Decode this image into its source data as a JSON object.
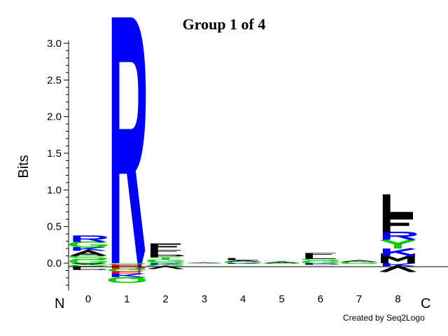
{
  "chart_data": {
    "type": "sequence-logo",
    "title": "Group 1 of 4",
    "ylabel": "Bits",
    "ylim": [
      -0.32,
      3.05
    ],
    "yticks": [
      "3.0",
      "2.5",
      "2.0",
      "1.5",
      "1.0",
      "0.5",
      "0.0"
    ],
    "ytick_values": [
      3.0,
      2.5,
      2.0,
      1.5,
      1.0,
      0.5,
      0.0
    ],
    "xticks": [
      "0",
      "1",
      "2",
      "3",
      "4",
      "5",
      "6",
      "7",
      "8"
    ],
    "n_label": "N",
    "c_label": "C",
    "credit": "Created by Seq2Logo",
    "colors": {
      "blue": "#0000ff",
      "green": "#00cc00",
      "black": "#000000",
      "red": "#ff0000"
    },
    "positions": [
      {
        "pos": 0,
        "up": [
          [
            "G",
            "green",
            0.05
          ],
          [
            "S",
            "green",
            0.05
          ],
          [
            "A",
            "black",
            0.07
          ],
          [
            "K",
            "blue",
            0.05
          ],
          [
            "G",
            "green",
            0.07
          ],
          [
            "R",
            "blue",
            0.08
          ]
        ],
        "down": [
          [
            "A",
            "black",
            0.02
          ],
          [
            "G",
            "green",
            0.02
          ],
          [
            "L",
            "black",
            0.03
          ],
          [
            "P",
            "black",
            0.02
          ]
        ]
      },
      {
        "pos": 1,
        "up": [
          [
            "R",
            "blue",
            3.05
          ]
        ],
        "down": [
          [
            "S",
            "green",
            0.02
          ],
          [
            "E",
            "red",
            0.03
          ],
          [
            "D",
            "red",
            0.03
          ],
          [
            "G",
            "green",
            0.03
          ],
          [
            "E",
            "red",
            0.03
          ],
          [
            "K",
            "blue",
            0.05
          ],
          [
            "Q",
            "green",
            0.08
          ]
        ]
      },
      {
        "pos": 2,
        "up": [
          [
            "S",
            "green",
            0.02
          ],
          [
            "G",
            "green",
            0.03
          ],
          [
            "T",
            "green",
            0.03
          ],
          [
            "P",
            "black",
            0.03
          ],
          [
            "L",
            "black",
            0.03
          ],
          [
            "F",
            "black",
            0.04
          ],
          [
            "F",
            "black",
            0.09
          ]
        ],
        "down": [
          [
            "K",
            "blue",
            0.02
          ],
          [
            "G",
            "green",
            0.02
          ],
          [
            "V",
            "black",
            0.04
          ]
        ]
      },
      {
        "pos": 3,
        "up": [
          [
            "A",
            "black",
            0.01
          ]
        ],
        "down": [
          [
            "S",
            "green",
            0.005
          ]
        ]
      },
      {
        "pos": 4,
        "up": [
          [
            "G",
            "green",
            0.02
          ],
          [
            "A",
            "black",
            0.02
          ],
          [
            "L",
            "black",
            0.03
          ]
        ],
        "down": [
          [
            "K",
            "blue",
            0.01
          ]
        ]
      },
      {
        "pos": 5,
        "up": [
          [
            "A",
            "black",
            0.02
          ],
          [
            "T",
            "green",
            0.01
          ]
        ],
        "down": [
          [
            "S",
            "green",
            0.01
          ]
        ]
      },
      {
        "pos": 6,
        "up": [
          [
            "G",
            "green",
            0.03
          ],
          [
            "S",
            "green",
            0.03
          ],
          [
            "L",
            "black",
            0.04
          ],
          [
            "F",
            "black",
            0.04
          ]
        ],
        "down": [
          [
            "K",
            "blue",
            0.01
          ],
          [
            "P",
            "black",
            0.01
          ]
        ]
      },
      {
        "pos": 7,
        "up": [
          [
            "G",
            "green",
            0.02
          ],
          [
            "A",
            "black",
            0.02
          ]
        ],
        "down": [
          [
            "S",
            "green",
            0.01
          ]
        ]
      },
      {
        "pos": 8,
        "up": [
          [
            "M",
            "black",
            0.1
          ],
          [
            "K",
            "blue",
            0.1
          ],
          [
            "Y",
            "green",
            0.12
          ],
          [
            "R",
            "blue",
            0.1
          ],
          [
            "F",
            "black",
            0.22
          ],
          [
            "L",
            "black",
            0.3
          ]
        ],
        "down": [
          [
            "K",
            "blue",
            0.04
          ],
          [
            "V",
            "black",
            0.08
          ]
        ]
      }
    ]
  }
}
